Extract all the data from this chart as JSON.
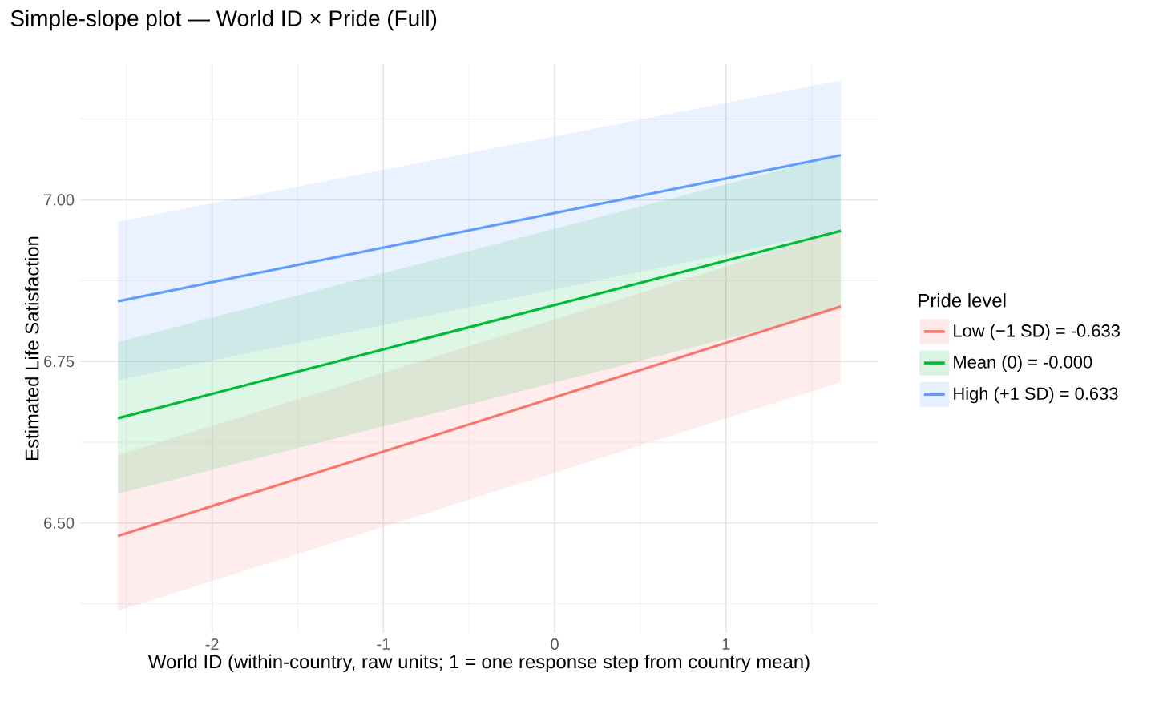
{
  "chart_data": {
    "type": "line",
    "title": "Simple-slope plot — World ID × Pride (Full)",
    "xlabel": "World ID (within-country, raw units; 1 = one response step from country mean)",
    "ylabel": "Estimated Life Satisfaction",
    "legend_title": "Pride level",
    "x": [
      -2.55,
      1.67
    ],
    "series": [
      {
        "name": "Low (−1 SD) = -0.633",
        "color": "#f8766d",
        "values": [
          6.48,
          6.835
        ],
        "lower": [
          6.364,
          6.718
        ],
        "upper": [
          6.605,
          6.952
        ]
      },
      {
        "name": "Mean (0) = -0.000",
        "color": "#00ba38",
        "values": [
          6.662,
          6.952
        ],
        "lower": [
          6.545,
          6.83
        ],
        "upper": [
          6.78,
          7.07
        ]
      },
      {
        "name": "High (+1 SD) = 0.633",
        "color": "#619cff",
        "values": [
          6.843,
          7.069
        ],
        "lower": [
          6.721,
          6.953
        ],
        "upper": [
          6.966,
          7.185
        ]
      }
    ],
    "xlim": [
      -2.77,
      1.89
    ],
    "ylim": [
      6.33,
      7.21
    ],
    "xticks": [
      -2,
      -1,
      0,
      1
    ],
    "yticks": [
      {
        "value": 6.5,
        "label": "6.50"
      },
      {
        "value": 6.75,
        "label": "6.75"
      },
      {
        "value": 7.0,
        "label": "7.00"
      }
    ],
    "grid": true,
    "legend": "right",
    "line_style": "solid",
    "marker": "none"
  }
}
